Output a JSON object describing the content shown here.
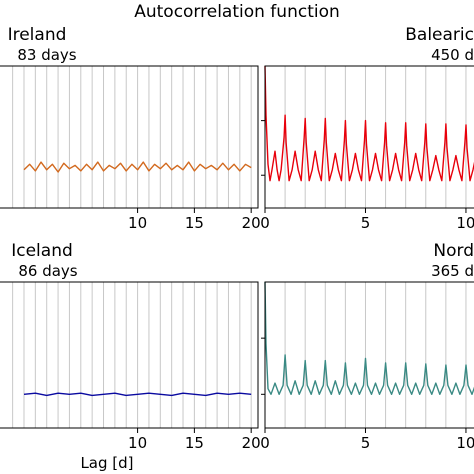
{
  "figure_title": "Autocorrelation function",
  "chart_data": [
    {
      "type": "line",
      "title": "Ireland",
      "subtitle": "83 days",
      "color": "#d2691e",
      "xlabel": "",
      "xlim": [
        -2.2,
        20.6
      ],
      "ylim": [
        -0.3,
        1.0
      ],
      "xticks": [
        10,
        15,
        20
      ],
      "xtick_labels": [
        "10",
        "15",
        "20"
      ],
      "yticks": [],
      "grid_x": [
        -1,
        0,
        1,
        2,
        3,
        4,
        5,
        6,
        7,
        8,
        9,
        10,
        11,
        12,
        13,
        14,
        15,
        16,
        17,
        18,
        19,
        20
      ],
      "grid": true,
      "series": [
        {
          "x": [
            0,
            0.5,
            1,
            1.5,
            2,
            2.5,
            3,
            3.5,
            4,
            4.5,
            5,
            5.5,
            6,
            6.5,
            7,
            7.5,
            8,
            8.5,
            9,
            9.5,
            10,
            10.5,
            11,
            11.5,
            12,
            12.5,
            13,
            13.5,
            14,
            14.5,
            15,
            15.5,
            16,
            16.5,
            17,
            17.5,
            18,
            18.5,
            19,
            19.5,
            20
          ],
          "y": [
            0.05,
            0.1,
            0.04,
            0.12,
            0.05,
            0.1,
            0.03,
            0.11,
            0.06,
            0.09,
            0.04,
            0.1,
            0.05,
            0.12,
            0.04,
            0.09,
            0.06,
            0.11,
            0.04,
            0.1,
            0.05,
            0.12,
            0.04,
            0.1,
            0.06,
            0.11,
            0.05,
            0.09,
            0.05,
            0.12,
            0.04,
            0.1,
            0.06,
            0.09,
            0.05,
            0.11,
            0.05,
            0.1,
            0.04,
            0.1,
            0.07
          ]
        }
      ]
    },
    {
      "type": "line",
      "title": "Balearic",
      "subtitle": "450 d",
      "color": "#e8000b",
      "xlabel": "",
      "xlim": [
        0,
        10.5
      ],
      "ylim": [
        -0.3,
        1.0
      ],
      "xticks": [
        0,
        5,
        10
      ],
      "xtick_labels": [
        "0",
        "5",
        "10"
      ],
      "yticks": [
        0.0,
        0.5
      ],
      "grid_x": [
        0,
        1,
        2,
        3,
        4,
        5,
        6,
        7,
        8,
        9,
        10
      ],
      "grid": true,
      "series": [
        {
          "x": [
            0,
            0.05,
            0.15,
            0.25,
            0.35,
            0.5,
            0.6,
            0.7,
            0.8,
            0.95,
            1.0,
            1.05,
            1.2,
            1.35,
            1.5,
            1.65,
            1.8,
            1.95,
            2.0,
            2.05,
            2.2,
            2.35,
            2.5,
            2.65,
            2.8,
            2.95,
            3.0,
            3.05,
            3.2,
            3.35,
            3.5,
            3.65,
            3.8,
            3.95,
            4.0,
            4.05,
            4.2,
            4.35,
            4.5,
            4.65,
            4.8,
            4.95,
            5.0,
            5.05,
            5.2,
            5.35,
            5.5,
            5.65,
            5.8,
            5.95,
            6.0,
            6.05,
            6.2,
            6.35,
            6.5,
            6.65,
            6.8,
            6.95,
            7.0,
            7.05,
            7.2,
            7.35,
            7.5,
            7.65,
            7.8,
            7.95,
            8.0,
            8.05,
            8.2,
            8.35,
            8.5,
            8.65,
            8.8,
            8.95,
            9.0,
            9.05,
            9.2,
            9.35,
            9.5,
            9.65,
            9.8,
            9.95,
            10.0,
            10.05,
            10.2,
            10.35,
            10.5
          ],
          "y": [
            1.0,
            0.55,
            0.1,
            -0.05,
            0.05,
            0.22,
            0.05,
            -0.05,
            0.05,
            0.35,
            0.55,
            0.3,
            -0.05,
            0.05,
            0.22,
            0.05,
            -0.05,
            0.35,
            0.52,
            0.3,
            -0.05,
            0.05,
            0.22,
            0.05,
            -0.05,
            0.33,
            0.52,
            0.3,
            -0.05,
            0.05,
            0.2,
            0.05,
            -0.05,
            0.32,
            0.5,
            0.28,
            -0.05,
            0.05,
            0.2,
            0.05,
            -0.05,
            0.32,
            0.5,
            0.28,
            -0.05,
            0.05,
            0.2,
            0.05,
            -0.05,
            0.3,
            0.48,
            0.27,
            -0.05,
            0.05,
            0.2,
            0.05,
            -0.05,
            0.3,
            0.48,
            0.27,
            -0.05,
            0.05,
            0.2,
            0.05,
            -0.05,
            0.3,
            0.47,
            0.26,
            -0.05,
            0.05,
            0.18,
            0.05,
            -0.05,
            0.3,
            0.47,
            0.26,
            -0.05,
            0.05,
            0.18,
            0.05,
            -0.05,
            0.3,
            0.46,
            0.25,
            -0.05,
            0.05,
            0.18
          ]
        }
      ]
    },
    {
      "type": "line",
      "title": "Iceland",
      "subtitle": "86 days",
      "color": "#0a0aa0",
      "xlabel": "Lag [d]",
      "xlim": [
        -2.2,
        20.6
      ],
      "ylim": [
        -0.3,
        1.0
      ],
      "xticks": [
        10,
        15,
        20
      ],
      "xtick_labels": [
        "10",
        "15",
        "20"
      ],
      "yticks": [],
      "grid_x": [
        -1,
        0,
        1,
        2,
        3,
        4,
        5,
        6,
        7,
        8,
        9,
        10,
        11,
        12,
        13,
        14,
        15,
        16,
        17,
        18,
        19,
        20
      ],
      "grid": true,
      "series": [
        {
          "x": [
            0,
            1,
            2,
            3,
            4,
            5,
            6,
            7,
            8,
            9,
            10,
            11,
            12,
            13,
            14,
            15,
            16,
            17,
            18,
            19,
            20
          ],
          "y": [
            0.0,
            0.01,
            -0.01,
            0.01,
            0.0,
            0.01,
            -0.01,
            0.0,
            0.01,
            -0.01,
            0.0,
            0.01,
            0.0,
            -0.01,
            0.01,
            0.0,
            -0.01,
            0.01,
            0.0,
            0.01,
            0.0
          ]
        }
      ]
    },
    {
      "type": "line",
      "title": "Nord",
      "subtitle": "365 d",
      "color": "#3a8a84",
      "xlabel": "",
      "xlim": [
        0,
        10.5
      ],
      "ylim": [
        -0.3,
        1.0
      ],
      "xticks": [
        0,
        5,
        10
      ],
      "xtick_labels": [
        "0",
        "5",
        "10"
      ],
      "yticks": [
        0.0,
        0.5
      ],
      "grid_x": [
        0,
        1,
        2,
        3,
        4,
        5,
        6,
        7,
        8,
        9,
        10
      ],
      "grid": true,
      "series": [
        {
          "x": [
            0,
            0.05,
            0.15,
            0.3,
            0.5,
            0.7,
            0.9,
            1.0,
            1.1,
            1.3,
            1.5,
            1.7,
            1.9,
            2.0,
            2.1,
            2.3,
            2.5,
            2.7,
            2.9,
            3.0,
            3.1,
            3.3,
            3.5,
            3.7,
            3.9,
            4.0,
            4.1,
            4.3,
            4.5,
            4.7,
            4.9,
            5.0,
            5.1,
            5.3,
            5.5,
            5.7,
            5.9,
            6.0,
            6.1,
            6.3,
            6.5,
            6.7,
            6.9,
            7.0,
            7.1,
            7.3,
            7.5,
            7.7,
            7.9,
            8.0,
            8.1,
            8.3,
            8.5,
            8.7,
            8.9,
            9.0,
            9.1,
            9.3,
            9.5,
            9.7,
            9.9,
            10.0,
            10.1,
            10.3,
            10.5
          ],
          "y": [
            1.0,
            0.45,
            0.05,
            0.0,
            0.1,
            0.0,
            0.08,
            0.35,
            0.08,
            0.0,
            0.12,
            0.0,
            0.08,
            0.3,
            0.08,
            0.0,
            0.12,
            0.0,
            0.08,
            0.3,
            0.08,
            0.0,
            0.12,
            0.0,
            0.08,
            0.28,
            0.08,
            0.0,
            0.1,
            0.0,
            0.08,
            0.32,
            0.08,
            0.0,
            0.1,
            0.0,
            0.08,
            0.28,
            0.08,
            0.0,
            0.1,
            0.0,
            0.08,
            0.28,
            0.08,
            0.0,
            0.1,
            0.0,
            0.08,
            0.27,
            0.08,
            0.0,
            0.1,
            0.0,
            0.08,
            0.26,
            0.08,
            0.0,
            0.1,
            0.0,
            0.08,
            0.26,
            0.08,
            0.0,
            0.1
          ]
        }
      ]
    }
  ]
}
